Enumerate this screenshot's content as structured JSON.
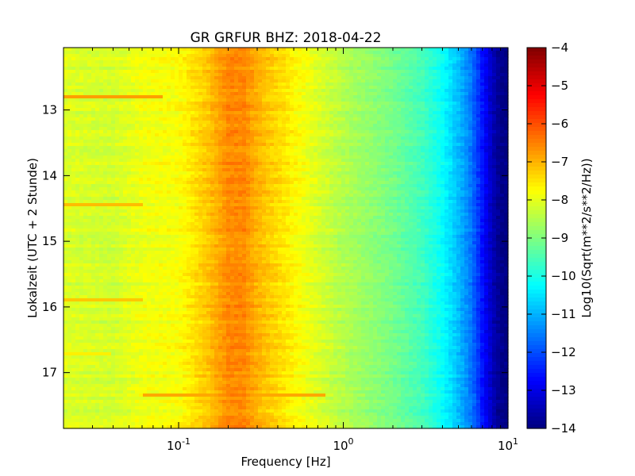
{
  "chart_data": {
    "type": "heatmap",
    "title": "GR GRFUR BHZ: 2018-04-22",
    "xlabel": "Frequency [Hz]",
    "ylabel": "Lokalzeit (UTC + 2 Stunde)",
    "x_scale": "log",
    "xlim": [
      0.02,
      10
    ],
    "x_ticks": [
      {
        "base": "10",
        "exp": "-1",
        "value": 0.1
      },
      {
        "base": "10",
        "exp": "0",
        "value": 1
      },
      {
        "base": "10",
        "exp": "1",
        "value": 10
      }
    ],
    "ylim": [
      12.05,
      17.85
    ],
    "y_inverted": true,
    "y_ticks": [
      "13",
      "14",
      "15",
      "16",
      "17"
    ],
    "colorbar": {
      "label": "Log10(Sqrt(m**2/s**2/Hz))",
      "colormap": "jet",
      "range": [
        -14,
        -4
      ],
      "ticks": [
        "-4",
        "-5",
        "-6",
        "-7",
        "-8",
        "-9",
        "-10",
        "-11",
        "-12",
        "-13",
        "-14"
      ]
    },
    "profile": {
      "frequency": [
        0.02,
        0.04,
        0.06,
        0.1,
        0.15,
        0.2,
        0.25,
        0.3,
        0.4,
        0.5,
        0.7,
        1,
        2,
        3,
        4,
        5,
        6,
        7,
        8,
        9,
        10
      ],
      "level": [
        -8.1,
        -8.2,
        -7.9,
        -7.8,
        -7.2,
        -6.6,
        -6.6,
        -7.0,
        -7.4,
        -7.7,
        -8.1,
        -8.5,
        -9.1,
        -9.6,
        -10.2,
        -10.9,
        -11.6,
        -12.6,
        -13.4,
        -13.9,
        -14.0
      ]
    },
    "events": [
      {
        "time": 12.78,
        "fmax": 0.08,
        "level": -6.8
      },
      {
        "time": 14.45,
        "fmax": 0.06,
        "level": -7.1
      },
      {
        "time": 15.88,
        "fmax": 0.06,
        "level": -7.2
      },
      {
        "time": 16.72,
        "fmax": 0.04,
        "level": -7.6
      },
      {
        "time": 17.33,
        "fmax": 0.8,
        "level": -6.9,
        "fmin": 0.06
      }
    ]
  }
}
